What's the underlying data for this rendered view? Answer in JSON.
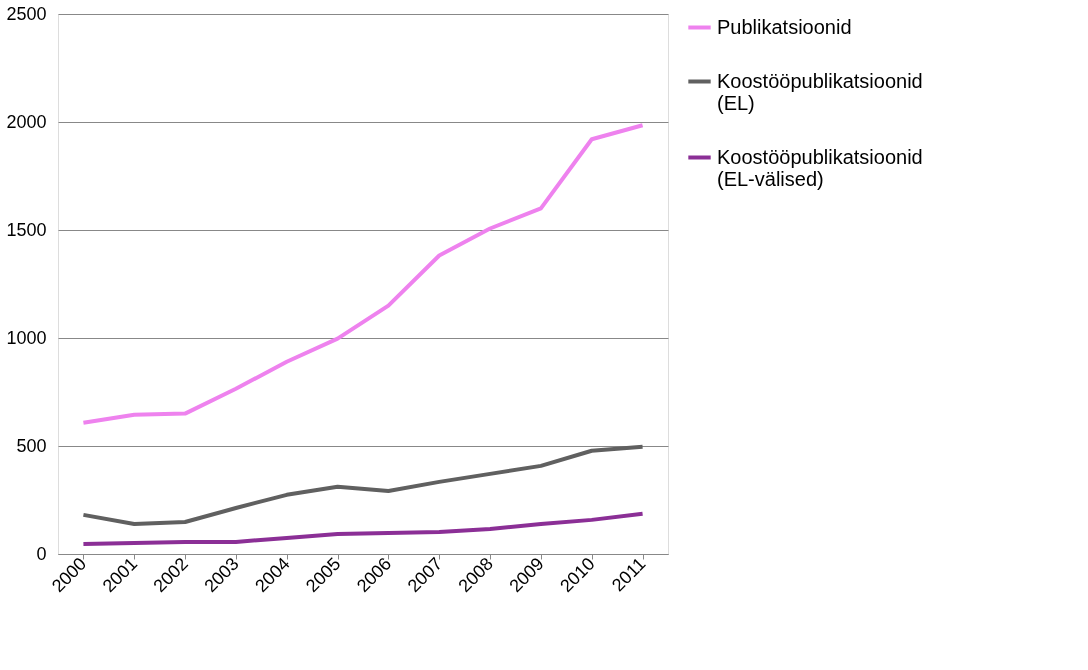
{
  "chart_data": {
    "type": "line",
    "categories": [
      "2000",
      "2001",
      "2002",
      "2003",
      "2004",
      "2005",
      "2006",
      "2007",
      "2008",
      "2009",
      "2010",
      "2011"
    ],
    "series": [
      {
        "name": "Publikatsioonid",
        "color": "#ee82ee",
        "values": [
          608,
          645,
          650,
          765,
          890,
          997,
          1150,
          1382,
          1507,
          1600,
          1920,
          1985
        ]
      },
      {
        "name": "Koostööpublikatsioonid (EL)",
        "color": "#606060",
        "values": [
          181,
          139,
          148,
          213,
          274,
          311,
          292,
          334,
          371,
          408,
          478,
          496
        ]
      },
      {
        "name": "Koostööpublikatsioonid (EL-välised)",
        "color": "#8b2f96",
        "values": [
          46,
          51,
          56,
          56,
          74,
          93,
          97,
          102,
          116,
          139,
          158,
          186
        ]
      }
    ],
    "ylim": [
      0,
      2500
    ],
    "yticks": [
      0,
      500,
      1000,
      1500,
      2000,
      2500
    ],
    "grid": "y",
    "legend": "right",
    "marker": "none",
    "line_style": "solid"
  }
}
